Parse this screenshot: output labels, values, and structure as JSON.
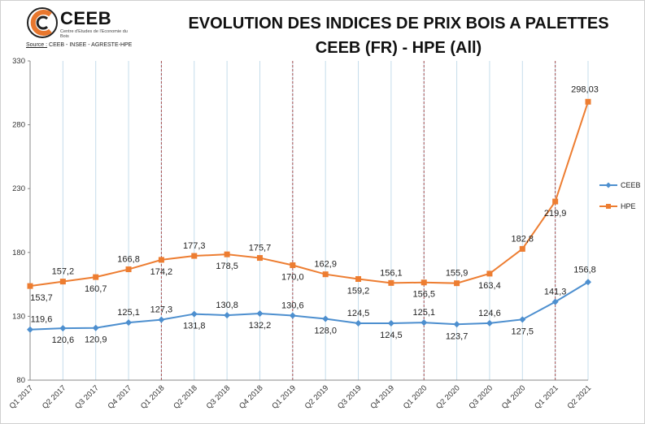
{
  "header": {
    "logo_name": "CEEB",
    "logo_subtitle": "Centre d'Etudes de l'Economie du Bois",
    "source_label": "Source :",
    "source_text": "CEEB - INSEE - AGRESTE-HPE",
    "title_line1": "EVOLUTION DES INDICES DE PRIX BOIS A PALETTES",
    "title_line2": "CEEB (FR) - HPE (All)"
  },
  "colors": {
    "ceeb": "#4d8fcf",
    "hpe": "#ed7d31",
    "separator": "#a85050",
    "grid": "#c5dceb"
  },
  "chart_data": {
    "type": "line",
    "title": "EVOLUTION DES INDICES DE PRIX BOIS A PALETTES CEEB (FR) - HPE (All)",
    "x": [
      "Q1 2017",
      "Q2 2017",
      "Q3 2017",
      "Q4 2017",
      "Q1 2018",
      "Q2 2018",
      "Q3 2018",
      "Q4 2018",
      "Q1 2019",
      "Q2 2019",
      "Q3 2019",
      "Q4 2019",
      "Q1 2020",
      "Q2 2020",
      "Q3 2020",
      "Q4 2020",
      "Q1 2021",
      "Q2 2021"
    ],
    "ylim": [
      80,
      330
    ],
    "yticks": [
      80,
      130,
      180,
      230,
      280,
      330
    ],
    "series": [
      {
        "name": "CEEB",
        "marker": "diamond",
        "values": [
          119.6,
          120.6,
          120.9,
          125.1,
          127.3,
          131.8,
          130.8,
          132.2,
          130.6,
          128.0,
          124.5,
          124.5,
          125.1,
          123.7,
          124.6,
          127.5,
          141.3,
          156.8
        ],
        "labels": [
          "119,6",
          "120,6",
          "120,9",
          "125,1",
          "127,3",
          "131,8",
          "130,8",
          "132,2",
          "130,6",
          "128,0",
          "124,5",
          "124,5",
          "125,1",
          "123,7",
          "124,6",
          "127,5",
          "141,3",
          "156,8"
        ]
      },
      {
        "name": "HPE",
        "marker": "square",
        "values": [
          153.7,
          157.2,
          160.7,
          166.8,
          174.2,
          177.3,
          178.5,
          175.7,
          170.0,
          162.9,
          159.2,
          156.1,
          156.5,
          155.9,
          163.4,
          182.8,
          219.9,
          298.03
        ],
        "labels": [
          "153,7",
          "157,2",
          "160,7",
          "166,8",
          "174,2",
          "177,3",
          "178,5",
          "175,7",
          "170,0",
          "162,9",
          "159,2",
          "156,1",
          "156,5",
          "155,9",
          "163,4",
          "182,8",
          "219,9",
          "298,03"
        ]
      }
    ],
    "year_separators_after": [
      "Q4 2017",
      "Q4 2018",
      "Q4 2019",
      "Q4 2020"
    ],
    "legend_position": "right",
    "grid": "vertical"
  }
}
